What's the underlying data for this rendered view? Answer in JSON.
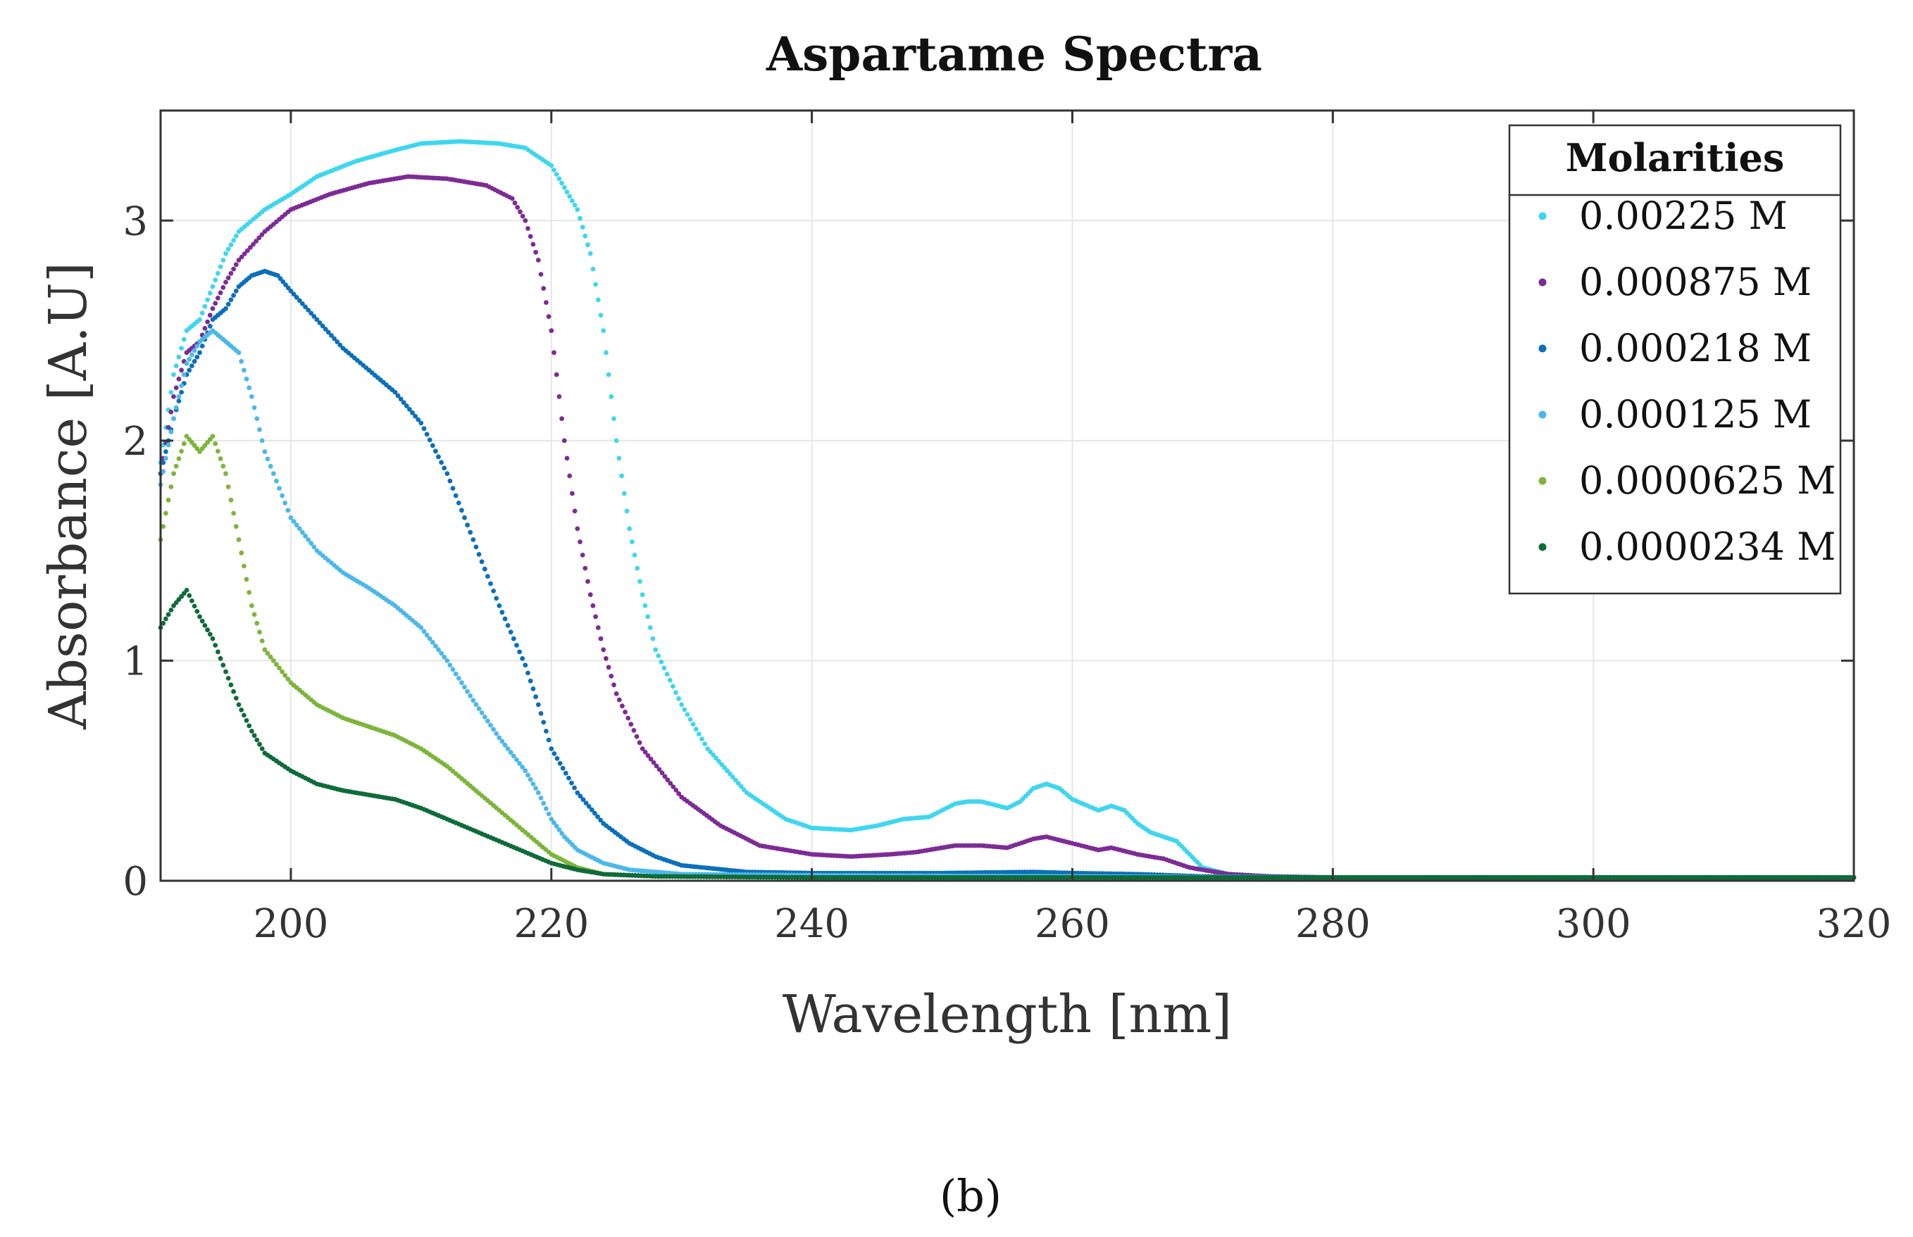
{
  "chart_data": {
    "type": "scatter",
    "title": "Aspartame Spectra",
    "xlabel": "Wavelength [nm]",
    "ylabel": "Absorbance [A.U]",
    "xlim": [
      190,
      320
    ],
    "ylim": [
      0,
      3.5
    ],
    "xticks": [
      "200",
      "220",
      "240",
      "260",
      "280",
      "300",
      "320"
    ],
    "yticks": [
      "0",
      "1",
      "2",
      "3"
    ],
    "grid": true,
    "legend": {
      "title": "Molarities",
      "placement": "top-right"
    },
    "panel_label": "(b)",
    "series": [
      {
        "name": "0.00225 M",
        "color": "#3fd6ee",
        "points": [
          [
            190,
            1.9
          ],
          [
            191,
            2.3
          ],
          [
            192,
            2.5
          ],
          [
            193,
            2.55
          ],
          [
            194,
            2.7
          ],
          [
            195,
            2.85
          ],
          [
            196,
            2.95
          ],
          [
            198,
            3.05
          ],
          [
            200,
            3.12
          ],
          [
            202,
            3.2
          ],
          [
            205,
            3.27
          ],
          [
            208,
            3.32
          ],
          [
            210,
            3.35
          ],
          [
            213,
            3.36
          ],
          [
            216,
            3.35
          ],
          [
            218,
            3.33
          ],
          [
            220,
            3.25
          ],
          [
            221,
            3.15
          ],
          [
            222,
            3.05
          ],
          [
            223,
            2.85
          ],
          [
            224,
            2.5
          ],
          [
            225,
            2.0
          ],
          [
            226,
            1.6
          ],
          [
            227,
            1.3
          ],
          [
            228,
            1.05
          ],
          [
            230,
            0.8
          ],
          [
            232,
            0.6
          ],
          [
            235,
            0.4
          ],
          [
            238,
            0.28
          ],
          [
            240,
            0.24
          ],
          [
            243,
            0.23
          ],
          [
            245,
            0.25
          ],
          [
            247,
            0.28
          ],
          [
            249,
            0.29
          ],
          [
            251,
            0.35
          ],
          [
            252,
            0.36
          ],
          [
            253,
            0.36
          ],
          [
            255,
            0.33
          ],
          [
            256,
            0.36
          ],
          [
            257,
            0.42
          ],
          [
            258,
            0.44
          ],
          [
            259,
            0.42
          ],
          [
            260,
            0.37
          ],
          [
            262,
            0.32
          ],
          [
            263,
            0.34
          ],
          [
            264,
            0.32
          ],
          [
            265,
            0.26
          ],
          [
            266,
            0.22
          ],
          [
            267,
            0.2
          ],
          [
            268,
            0.18
          ],
          [
            269,
            0.12
          ],
          [
            270,
            0.06
          ],
          [
            272,
            0.03
          ],
          [
            275,
            0.02
          ],
          [
            280,
            0.015
          ],
          [
            290,
            0.015
          ],
          [
            300,
            0.015
          ],
          [
            310,
            0.015
          ],
          [
            320,
            0.015
          ]
        ]
      },
      {
        "name": "0.000875 M",
        "color": "#7d2b95",
        "points": [
          [
            190,
            1.85
          ],
          [
            191,
            2.2
          ],
          [
            192,
            2.4
          ],
          [
            193,
            2.45
          ],
          [
            194,
            2.6
          ],
          [
            195,
            2.72
          ],
          [
            196,
            2.82
          ],
          [
            198,
            2.95
          ],
          [
            200,
            3.05
          ],
          [
            203,
            3.12
          ],
          [
            206,
            3.17
          ],
          [
            209,
            3.2
          ],
          [
            212,
            3.19
          ],
          [
            215,
            3.16
          ],
          [
            217,
            3.1
          ],
          [
            218,
            3.0
          ],
          [
            219,
            2.82
          ],
          [
            220,
            2.5
          ],
          [
            221,
            2.0
          ],
          [
            222,
            1.6
          ],
          [
            223,
            1.3
          ],
          [
            224,
            1.05
          ],
          [
            225,
            0.85
          ],
          [
            227,
            0.6
          ],
          [
            230,
            0.38
          ],
          [
            233,
            0.25
          ],
          [
            236,
            0.16
          ],
          [
            240,
            0.12
          ],
          [
            243,
            0.11
          ],
          [
            246,
            0.12
          ],
          [
            248,
            0.13
          ],
          [
            251,
            0.16
          ],
          [
            253,
            0.16
          ],
          [
            255,
            0.15
          ],
          [
            257,
            0.19
          ],
          [
            258,
            0.2
          ],
          [
            260,
            0.17
          ],
          [
            262,
            0.14
          ],
          [
            263,
            0.15
          ],
          [
            265,
            0.12
          ],
          [
            267,
            0.1
          ],
          [
            269,
            0.06
          ],
          [
            272,
            0.03
          ],
          [
            275,
            0.02
          ],
          [
            280,
            0.015
          ],
          [
            290,
            0.015
          ],
          [
            300,
            0.015
          ],
          [
            310,
            0.015
          ],
          [
            320,
            0.015
          ]
        ]
      },
      {
        "name": "0.000218 M",
        "color": "#0b6fbb",
        "points": [
          [
            190,
            1.85
          ],
          [
            191,
            2.1
          ],
          [
            192,
            2.3
          ],
          [
            193,
            2.4
          ],
          [
            194,
            2.55
          ],
          [
            195,
            2.6
          ],
          [
            196,
            2.7
          ],
          [
            197,
            2.75
          ],
          [
            198,
            2.77
          ],
          [
            199,
            2.75
          ],
          [
            200,
            2.68
          ],
          [
            202,
            2.55
          ],
          [
            204,
            2.42
          ],
          [
            206,
            2.32
          ],
          [
            208,
            2.22
          ],
          [
            210,
            2.08
          ],
          [
            212,
            1.85
          ],
          [
            214,
            1.55
          ],
          [
            216,
            1.25
          ],
          [
            218,
            0.98
          ],
          [
            219,
            0.8
          ],
          [
            220,
            0.6
          ],
          [
            222,
            0.4
          ],
          [
            224,
            0.26
          ],
          [
            226,
            0.17
          ],
          [
            228,
            0.11
          ],
          [
            230,
            0.07
          ],
          [
            235,
            0.04
          ],
          [
            240,
            0.035
          ],
          [
            250,
            0.035
          ],
          [
            257,
            0.04
          ],
          [
            260,
            0.035
          ],
          [
            265,
            0.03
          ],
          [
            270,
            0.02
          ],
          [
            280,
            0.015
          ],
          [
            290,
            0.015
          ],
          [
            300,
            0.015
          ],
          [
            310,
            0.015
          ],
          [
            320,
            0.015
          ]
        ]
      },
      {
        "name": "0.000125 M",
        "color": "#4cb8ea",
        "points": [
          [
            190,
            1.8
          ],
          [
            191,
            2.1
          ],
          [
            192,
            2.35
          ],
          [
            193,
            2.45
          ],
          [
            194,
            2.5
          ],
          [
            195,
            2.45
          ],
          [
            196,
            2.4
          ],
          [
            197,
            2.2
          ],
          [
            198,
            1.95
          ],
          [
            200,
            1.65
          ],
          [
            202,
            1.5
          ],
          [
            204,
            1.4
          ],
          [
            206,
            1.33
          ],
          [
            208,
            1.25
          ],
          [
            210,
            1.15
          ],
          [
            212,
            1.0
          ],
          [
            214,
            0.82
          ],
          [
            216,
            0.65
          ],
          [
            218,
            0.5
          ],
          [
            219,
            0.4
          ],
          [
            220,
            0.28
          ],
          [
            221,
            0.2
          ],
          [
            222,
            0.14
          ],
          [
            224,
            0.08
          ],
          [
            226,
            0.05
          ],
          [
            230,
            0.03
          ],
          [
            240,
            0.025
          ],
          [
            260,
            0.02
          ],
          [
            280,
            0.015
          ],
          [
            300,
            0.015
          ],
          [
            320,
            0.015
          ]
        ]
      },
      {
        "name": "0.0000625 M",
        "color": "#7db53b",
        "points": [
          [
            190,
            1.55
          ],
          [
            191,
            1.85
          ],
          [
            192,
            2.02
          ],
          [
            193,
            1.95
          ],
          [
            194,
            2.02
          ],
          [
            195,
            1.85
          ],
          [
            196,
            1.55
          ],
          [
            197,
            1.25
          ],
          [
            198,
            1.05
          ],
          [
            200,
            0.9
          ],
          [
            202,
            0.8
          ],
          [
            204,
            0.74
          ],
          [
            206,
            0.7
          ],
          [
            208,
            0.66
          ],
          [
            210,
            0.6
          ],
          [
            212,
            0.52
          ],
          [
            214,
            0.42
          ],
          [
            216,
            0.32
          ],
          [
            218,
            0.22
          ],
          [
            220,
            0.12
          ],
          [
            222,
            0.06
          ],
          [
            224,
            0.03
          ],
          [
            228,
            0.02
          ],
          [
            240,
            0.015
          ],
          [
            260,
            0.015
          ],
          [
            280,
            0.015
          ],
          [
            300,
            0.015
          ],
          [
            320,
            0.015
          ]
        ]
      },
      {
        "name": "0.0000234 M",
        "color": "#0e6b3a",
        "points": [
          [
            190,
            1.15
          ],
          [
            191,
            1.25
          ],
          [
            192,
            1.32
          ],
          [
            193,
            1.2
          ],
          [
            194,
            1.1
          ],
          [
            195,
            0.95
          ],
          [
            196,
            0.8
          ],
          [
            197,
            0.68
          ],
          [
            198,
            0.58
          ],
          [
            200,
            0.5
          ],
          [
            202,
            0.44
          ],
          [
            204,
            0.41
          ],
          [
            206,
            0.39
          ],
          [
            208,
            0.37
          ],
          [
            210,
            0.33
          ],
          [
            212,
            0.28
          ],
          [
            214,
            0.23
          ],
          [
            216,
            0.18
          ],
          [
            218,
            0.13
          ],
          [
            220,
            0.08
          ],
          [
            222,
            0.05
          ],
          [
            224,
            0.03
          ],
          [
            228,
            0.02
          ],
          [
            240,
            0.015
          ],
          [
            260,
            0.015
          ],
          [
            280,
            0.015
          ],
          [
            300,
            0.015
          ],
          [
            320,
            0.015
          ]
        ]
      }
    ]
  }
}
